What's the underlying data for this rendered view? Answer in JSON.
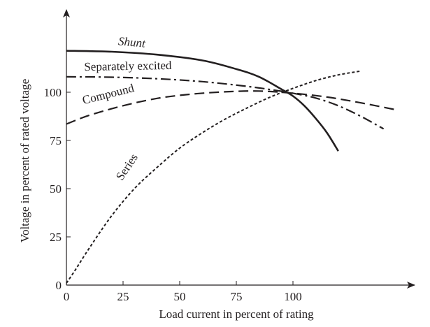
{
  "chart_data": {
    "type": "line",
    "xlabel": "Load current in percent of rating",
    "ylabel": "Voltage in percent of rated voltage",
    "x_ticks": [
      0,
      25,
      50,
      75,
      100
    ],
    "y_ticks": [
      0,
      25,
      50,
      75,
      100
    ],
    "x_tick_labels": [
      "0",
      "25",
      "50",
      "75",
      "100"
    ],
    "y_tick_labels": [
      "0",
      "25",
      "50",
      "75",
      "100"
    ],
    "xlim": [
      0,
      152
    ],
    "ylim": [
      0,
      142
    ],
    "grid": false,
    "series": [
      {
        "name": "Shunt",
        "line_style": "solid",
        "points": [
          [
            0,
            121.5
          ],
          [
            20,
            121
          ],
          [
            40,
            119.5
          ],
          [
            60,
            116.5
          ],
          [
            75,
            112
          ],
          [
            85,
            108
          ],
          [
            95,
            101.5
          ],
          [
            100,
            98
          ],
          [
            105,
            93
          ],
          [
            110,
            86.5
          ],
          [
            115,
            79
          ],
          [
            120,
            69.5
          ]
        ]
      },
      {
        "name": "Separately excited",
        "line_style": "dash-dot",
        "points": [
          [
            0,
            108
          ],
          [
            20,
            107.8
          ],
          [
            40,
            107
          ],
          [
            60,
            105.5
          ],
          [
            80,
            103
          ],
          [
            95,
            100.5
          ],
          [
            100,
            99.5
          ],
          [
            110,
            97
          ],
          [
            120,
            93
          ],
          [
            130,
            87.5
          ],
          [
            140,
            81
          ]
        ]
      },
      {
        "name": "Compound",
        "line_style": "dashed",
        "points": [
          [
            0,
            83.5
          ],
          [
            10,
            88
          ],
          [
            25,
            93
          ],
          [
            40,
            96.8
          ],
          [
            55,
            99
          ],
          [
            70,
            100.2
          ],
          [
            85,
            100.6
          ],
          [
            100,
            99.5
          ],
          [
            115,
            97.5
          ],
          [
            130,
            94.5
          ],
          [
            145,
            91
          ]
        ]
      },
      {
        "name": "Series",
        "line_style": "dotted",
        "points": [
          [
            0,
            1
          ],
          [
            4,
            8
          ],
          [
            10,
            19
          ],
          [
            20,
            36
          ],
          [
            30,
            50
          ],
          [
            40,
            61
          ],
          [
            50,
            71
          ],
          [
            60,
            79
          ],
          [
            70,
            86
          ],
          [
            80,
            92
          ],
          [
            90,
            97.5
          ],
          [
            100,
            102
          ],
          [
            110,
            106
          ],
          [
            120,
            109
          ],
          [
            130,
            111
          ]
        ]
      }
    ],
    "annotations": [
      {
        "text": "Shunt",
        "italic": true
      },
      {
        "text": "Separately excited",
        "italic": false
      },
      {
        "text": "Compound",
        "italic": false
      },
      {
        "text": "Series",
        "italic": false
      }
    ]
  }
}
